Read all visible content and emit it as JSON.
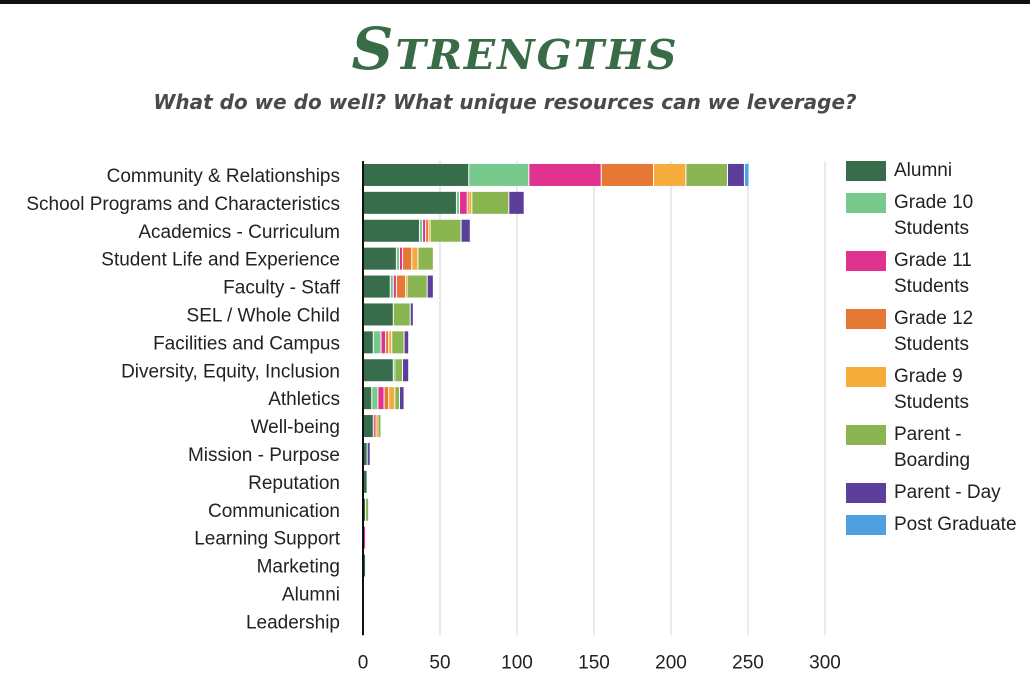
{
  "header": {
    "title": "Strengths",
    "subtitle": "What do we do well?  What unique resources can we leverage?"
  },
  "chart_data": {
    "type": "bar",
    "orientation": "horizontal",
    "stacked": true,
    "title": "Strengths",
    "subtitle": "What do we do well?  What unique resources can we leverage?",
    "xlim": [
      0,
      300
    ],
    "x_ticks": [
      0,
      50,
      100,
      150,
      200,
      250,
      300
    ],
    "grid": true,
    "legend_position": "right",
    "categories": [
      "Community & Relationships",
      "School Programs and Characteristics",
      "Academics - Curriculum",
      "Student Life and Experience",
      "Faculty - Staff",
      "SEL / Whole Child",
      "Facilities and Campus",
      "Diversity, Equity, Inclusion",
      "Athletics",
      "Well-being",
      "Mission - Purpose",
      "Reputation",
      "Communication",
      "Learning Support",
      "Marketing",
      "Alumni",
      "Leadership"
    ],
    "series": [
      {
        "name": "Alumni",
        "color": "#386d4b",
        "values": [
          69,
          61,
          37,
          22,
          18,
          20,
          7,
          20,
          6,
          7,
          3,
          3,
          2,
          0,
          2,
          1,
          1
        ]
      },
      {
        "name": "Grade 10 Students",
        "color": "#78c98c",
        "values": [
          39,
          2,
          2,
          2,
          2,
          0,
          5,
          1,
          4,
          0,
          0,
          0,
          0,
          0,
          0,
          0,
          0
        ]
      },
      {
        "name": "Grade 11 Students",
        "color": "#e0338f",
        "values": [
          47,
          5,
          2,
          2,
          2,
          0,
          3,
          0,
          4,
          1,
          0,
          0,
          0,
          2,
          0,
          0,
          0
        ]
      },
      {
        "name": "Grade 12 Students",
        "color": "#e57835",
        "values": [
          34,
          1,
          2,
          6,
          6,
          0,
          2,
          0,
          3,
          1,
          0,
          0,
          0,
          0,
          0,
          0,
          0
        ]
      },
      {
        "name": "Grade 9 Students",
        "color": "#f5ac3b",
        "values": [
          21,
          2,
          1,
          4,
          1,
          0,
          2,
          0,
          4,
          1,
          0,
          0,
          0,
          0,
          0,
          0,
          0
        ]
      },
      {
        "name": "Parent - Boarding",
        "color": "#8bb551",
        "values": [
          27,
          24,
          20,
          10,
          13,
          11,
          8,
          5,
          3,
          2,
          0,
          0,
          2,
          0,
          0,
          0,
          0
        ]
      },
      {
        "name": "Parent - Day",
        "color": "#5b3f9a",
        "values": [
          11,
          10,
          6,
          0,
          4,
          2,
          3,
          4,
          3,
          0,
          2,
          0,
          0,
          0,
          0,
          0,
          0
        ]
      },
      {
        "name": "Post Graduate",
        "color": "#4fa0e0",
        "values": [
          3,
          0,
          0,
          0,
          0,
          0,
          0,
          0,
          0,
          0,
          0,
          0,
          0,
          0,
          0,
          0,
          0
        ]
      }
    ]
  },
  "legend": [
    {
      "label": "Alumni",
      "color": "#386d4b"
    },
    {
      "label": "Grade 10 Students",
      "color": "#78c98c"
    },
    {
      "label": "Grade 11 Students",
      "color": "#e0338f"
    },
    {
      "label": "Grade 12 Students",
      "color": "#e57835"
    },
    {
      "label": "Grade 9 Students",
      "color": "#f5ac3b"
    },
    {
      "label": "Parent - Boarding",
      "color": "#8bb551"
    },
    {
      "label": "Parent - Day",
      "color": "#5b3f9a"
    },
    {
      "label": "Post Graduate",
      "color": "#4fa0e0"
    }
  ]
}
